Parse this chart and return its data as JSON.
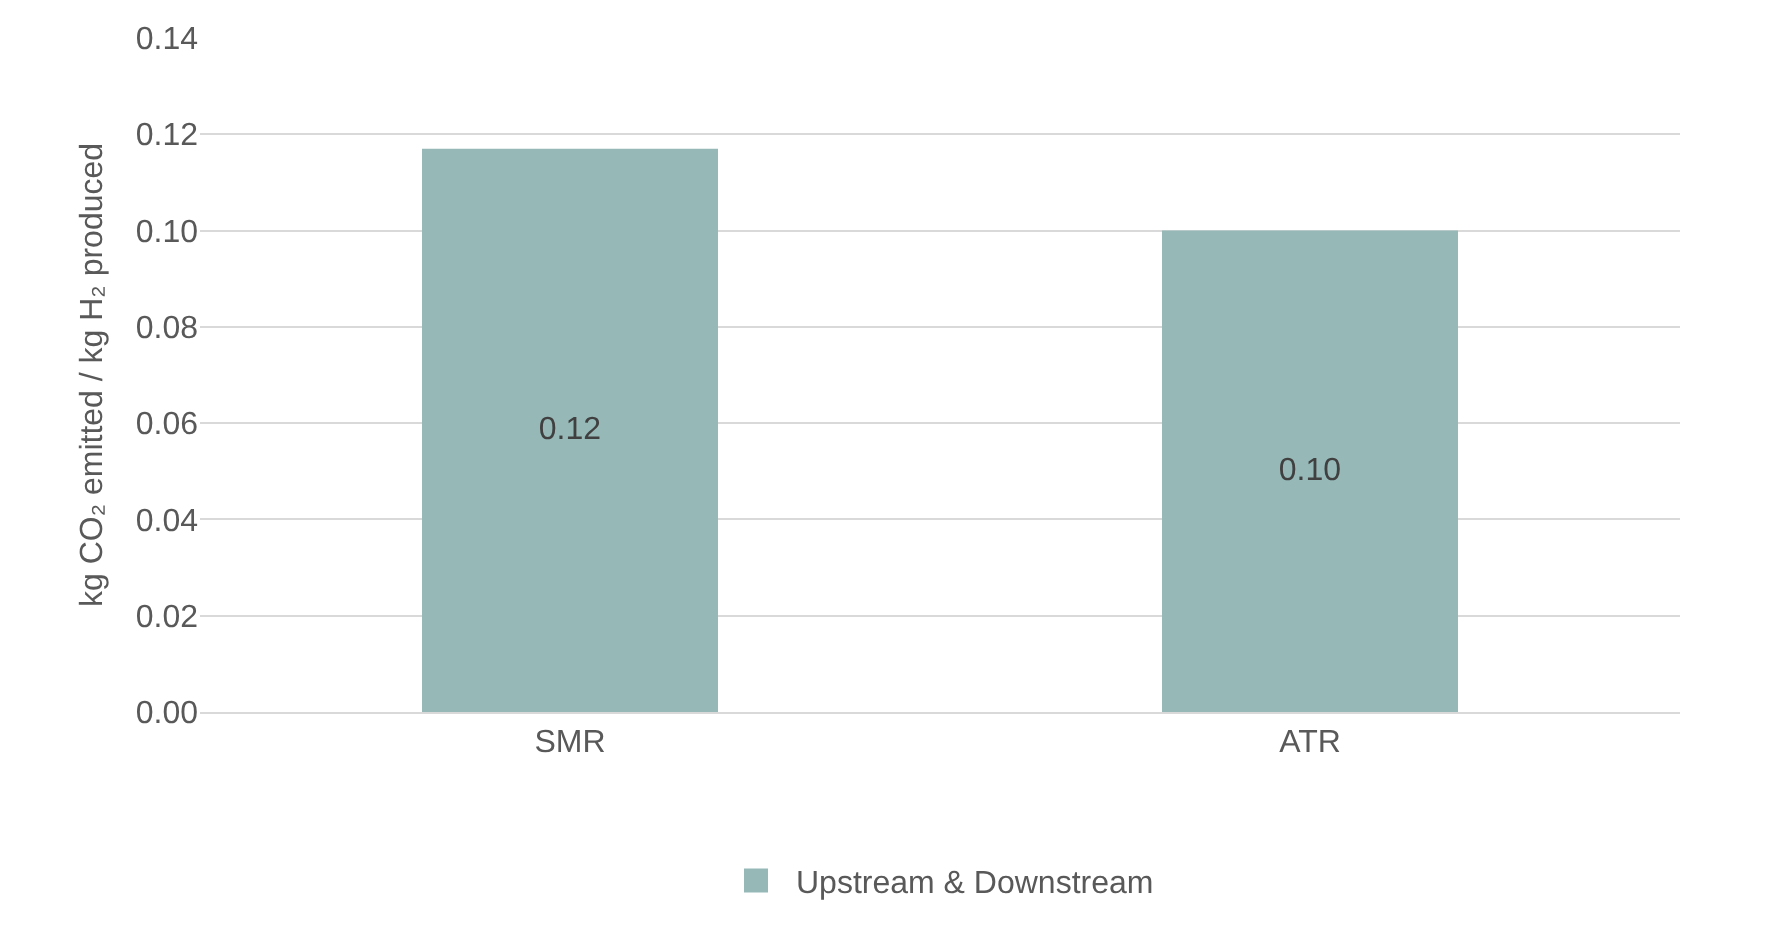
{
  "chart_data": {
    "type": "bar",
    "ylabel": "kg CO₂ emitted / kg H₂ produced",
    "categories": [
      "SMR",
      "ATR"
    ],
    "series": [
      {
        "name": "Upstream & Downstream",
        "color": "#96b9b8",
        "values": [
          0.117,
          0.1
        ],
        "value_labels": [
          "0.12",
          "0.10"
        ]
      }
    ],
    "ylim": [
      0,
      0.14
    ],
    "yticks": [
      {
        "value": 0,
        "label": "0.00"
      },
      {
        "value": 0.02,
        "label": "0.02"
      },
      {
        "value": 0.04,
        "label": "0.04"
      },
      {
        "value": 0.06,
        "label": "0.06"
      },
      {
        "value": 0.08,
        "label": "0.08"
      },
      {
        "value": 0.1,
        "label": "0.10"
      },
      {
        "value": 0.12,
        "label": "0.12"
      },
      {
        "value": 0.14,
        "label": "0.14"
      }
    ],
    "grid": "y",
    "legend": "bottom"
  }
}
